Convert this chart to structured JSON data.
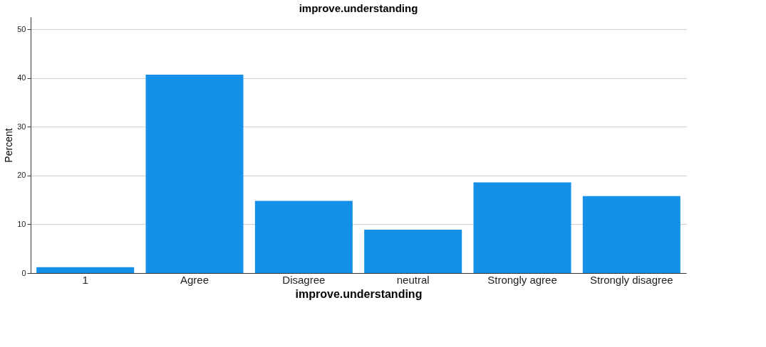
{
  "chart_data": {
    "type": "bar",
    "title": "improve.understanding",
    "xlabel": "improve.understanding",
    "ylabel": "Percent",
    "categories": [
      "1",
      "Agree",
      "Disagree",
      "neutral",
      "Strongly agree",
      "Strongly disagree"
    ],
    "values": [
      1.2,
      40.7,
      14.8,
      8.9,
      18.6,
      15.8
    ],
    "color": "#1490e8",
    "ylim": [
      0,
      52.5
    ],
    "yticks": [
      0,
      10,
      20,
      30,
      40,
      50
    ],
    "grid": "y"
  }
}
